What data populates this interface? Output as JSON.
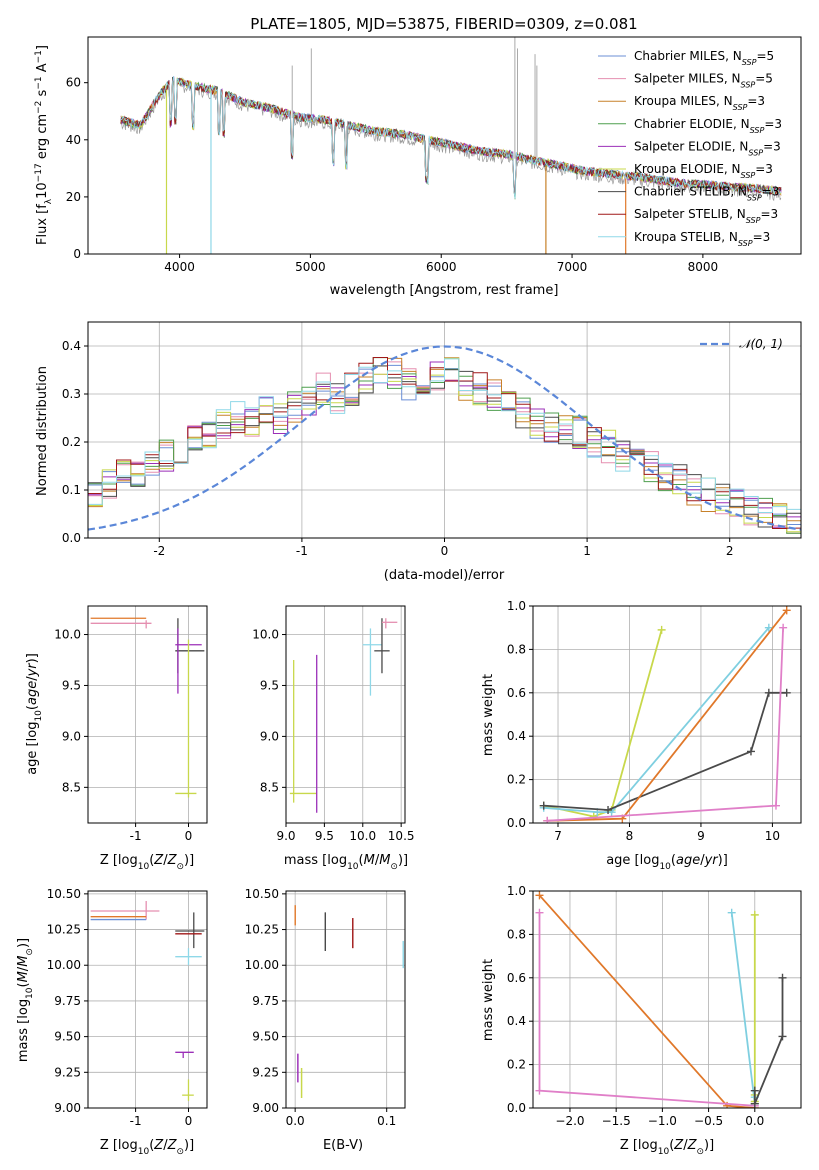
{
  "colors": {
    "chabrier_miles": "#6b8fd6",
    "salpeter_miles": "#e58fb0",
    "kroupa_miles": "#c7812a",
    "chabrier_elodie": "#4f9f4f",
    "salpeter_elodie": "#9b2fb8",
    "kroupa_elodie": "#c8d84b",
    "chabrier_stelib": "#4a4a4a",
    "salpeter_stelib": "#a01818",
    "kroupa_stelib": "#8fd8e8",
    "normal_curve": "#5b87d8",
    "grid": "#b0b0b0",
    "orange_line": "#e0782a",
    "pink_line": "#e07fc8",
    "cyan_line": "#7fcfe0",
    "yellow_line": "#c8d84b",
    "dark_line": "#4a4a4a"
  },
  "chart_data": [
    {
      "type": "line",
      "title": "PLATE=1805, MJD=53875, FIBERID=0309, z=0.081",
      "xlabel": "wavelength [Angstrom, rest frame]",
      "ylabel": "Flux [f_λ 10^-17 erg cm^-2 s^-1 A^-1]",
      "xlim": [
        3300,
        8750
      ],
      "ylim": [
        0,
        76
      ],
      "xticks": [
        4000,
        5000,
        6000,
        7000,
        8000
      ],
      "yticks": [
        0,
        20,
        40,
        60
      ],
      "legend_position": "top-right",
      "legend": [
        {
          "text": "Chabrier MILES, N",
          "sub": "SSP",
          "suffix": "=5",
          "color_key": "chabrier_miles"
        },
        {
          "text": "Salpeter MILES, N",
          "sub": "SSP",
          "suffix": "=5",
          "color_key": "salpeter_miles"
        },
        {
          "text": "Kroupa MILES, N",
          "sub": "SSP",
          "suffix": "=3",
          "color_key": "kroupa_miles"
        },
        {
          "text": "Chabrier ELODIE, N",
          "sub": "SSP",
          "suffix": "=3",
          "color_key": "chabrier_elodie"
        },
        {
          "text": "Salpeter ELODIE, N",
          "sub": "SSP",
          "suffix": "=3",
          "color_key": "salpeter_elodie"
        },
        {
          "text": "Kroupa ELODIE, N",
          "sub": "SSP",
          "suffix": "=3",
          "color_key": "kroupa_elodie"
        },
        {
          "text": "Chabrier STELIB, N",
          "sub": "SSP",
          "suffix": "=3",
          "color_key": "chabrier_stelib"
        },
        {
          "text": "Salpeter STELIB, N",
          "sub": "SSP",
          "suffix": "=3",
          "color_key": "salpeter_stelib"
        },
        {
          "text": "Kroupa STELIB, N",
          "sub": "SSP",
          "suffix": "=3",
          "color_key": "kroupa_stelib"
        }
      ],
      "spectrum_continuum": [
        [
          3550,
          46
        ],
        [
          3700,
          44
        ],
        [
          3850,
          55
        ],
        [
          3950,
          60
        ],
        [
          4100,
          58
        ],
        [
          4300,
          56
        ],
        [
          4500,
          52
        ],
        [
          4700,
          50
        ],
        [
          4900,
          47
        ],
        [
          5100,
          46
        ],
        [
          5300,
          44
        ],
        [
          5500,
          42
        ],
        [
          5700,
          41
        ],
        [
          5900,
          39
        ],
        [
          6100,
          37
        ],
        [
          6300,
          35
        ],
        [
          6500,
          34
        ],
        [
          6700,
          32
        ],
        [
          6900,
          30
        ],
        [
          7100,
          28
        ],
        [
          7300,
          27
        ],
        [
          7500,
          26
        ],
        [
          7800,
          24
        ],
        [
          8100,
          23
        ],
        [
          8400,
          22
        ],
        [
          8600,
          21
        ]
      ],
      "emission_spikes": [
        [
          4861,
          66
        ],
        [
          5007,
          72
        ],
        [
          6563,
          76
        ],
        [
          6583,
          72
        ],
        [
          6717,
          70
        ],
        [
          6731,
          66
        ]
      ],
      "model_cutoffs": [
        {
          "color_key": "kroupa_elodie",
          "x": 3900
        },
        {
          "color_key": "kroupa_stelib",
          "x": 4240
        },
        {
          "color_key": "kroupa_miles",
          "x": 6800
        },
        {
          "color_key": "orange_line",
          "x": 7410
        }
      ]
    },
    {
      "type": "line",
      "xlabel": "(data-model)/error",
      "ylabel": "Normed distribution",
      "xlim": [
        -2.5,
        2.5
      ],
      "ylim": [
        0,
        0.45
      ],
      "xticks": [
        -2,
        -1,
        0,
        1,
        2
      ],
      "yticks": [
        0.0,
        0.1,
        0.2,
        0.3,
        0.4
      ],
      "legend_position": "top-right",
      "legend": [
        {
          "text": "𝒩(0, 1)",
          "color_key": "normal_curve"
        }
      ],
      "series_names": [],
      "histogram_bins": 50,
      "histogram_start": -2.5,
      "histogram_width": 0.1,
      "histogram_base": [
        0.1,
        0.11,
        0.13,
        0.14,
        0.15,
        0.17,
        0.18,
        0.2,
        0.22,
        0.24,
        0.25,
        0.24,
        0.26,
        0.25,
        0.27,
        0.28,
        0.31,
        0.29,
        0.31,
        0.33,
        0.35,
        0.34,
        0.32,
        0.33,
        0.34,
        0.35,
        0.32,
        0.31,
        0.3,
        0.28,
        0.26,
        0.24,
        0.23,
        0.22,
        0.22,
        0.2,
        0.19,
        0.17,
        0.16,
        0.15,
        0.13,
        0.12,
        0.1,
        0.09,
        0.08,
        0.07,
        0.06,
        0.05,
        0.04,
        0.03
      ]
    },
    {
      "type": "scatter",
      "xlabel": "Z [log10(Z/Z⊙)]",
      "ylabel": "age [log10(age/yr)]",
      "xlim": [
        -1.9,
        0.35
      ],
      "ylim": [
        8.15,
        10.28
      ],
      "xticks": [
        -1,
        0
      ],
      "yticks": [
        8.5,
        9.0,
        9.5,
        10.0
      ],
      "errorbars": [
        {
          "x": -0.8,
          "y": 10.16,
          "xmin": -1.85,
          "xmax": -0.8,
          "ymin": 10.16,
          "ymax": 10.16,
          "color_key": "orange_line"
        },
        {
          "x": -0.8,
          "y": 10.11,
          "xmin": -1.85,
          "xmax": -0.7,
          "ymin": 10.06,
          "ymax": 10.14,
          "color_key": "salpeter_miles"
        },
        {
          "x": -0.2,
          "y": 9.84,
          "xmin": -0.25,
          "xmax": 0.3,
          "ymin": 9.62,
          "ymax": 10.16,
          "color_key": "chabrier_stelib"
        },
        {
          "x": -0.2,
          "y": 9.9,
          "xmin": -0.25,
          "xmax": 0.25,
          "ymin": 9.42,
          "ymax": 10.06,
          "color_key": "salpeter_elodie"
        },
        {
          "x": 0.0,
          "y": 8.44,
          "xmin": -0.25,
          "xmax": 0.15,
          "ymin": 8.4,
          "ymax": 9.95,
          "color_key": "kroupa_elodie"
        }
      ]
    },
    {
      "type": "scatter",
      "xlabel": "mass [log10(M/M⊙)]",
      "ylim": [
        8.15,
        10.28
      ],
      "xlim": [
        9.0,
        10.55
      ],
      "xticks": [
        9.0,
        9.5,
        10.0,
        10.5
      ],
      "yticks": [
        8.5,
        9.0,
        9.5,
        10.0
      ],
      "errorbars": [
        {
          "x": 9.1,
          "y": 9.0,
          "xmin": 9.1,
          "xmax": 9.1,
          "ymin": 8.35,
          "ymax": 9.75,
          "color_key": "kroupa_elodie"
        },
        {
          "x": 9.1,
          "y": 8.44,
          "xmin": 9.05,
          "xmax": 9.4,
          "ymin": 8.44,
          "ymax": 8.44,
          "color_key": "kroupa_elodie"
        },
        {
          "x": 9.4,
          "y": 9.0,
          "xmin": 9.4,
          "xmax": 9.4,
          "ymin": 8.25,
          "ymax": 9.8,
          "color_key": "salpeter_elodie"
        },
        {
          "x": 10.1,
          "y": 9.9,
          "xmin": 10.0,
          "xmax": 10.25,
          "ymin": 9.4,
          "ymax": 10.06,
          "color_key": "kroupa_stelib"
        },
        {
          "x": 10.25,
          "y": 9.84,
          "xmin": 10.15,
          "xmax": 10.35,
          "ymin": 9.62,
          "ymax": 10.16,
          "color_key": "chabrier_stelib"
        },
        {
          "x": 10.3,
          "y": 10.12,
          "xmin": 10.25,
          "xmax": 10.45,
          "ymin": 10.06,
          "ymax": 10.16,
          "color_key": "salpeter_miles"
        }
      ]
    },
    {
      "type": "line",
      "xlabel": "age [log10(age/yr)]",
      "ylabel": "mass weight",
      "xlim": [
        6.65,
        10.4
      ],
      "ylim": [
        0,
        1.0
      ],
      "xticks": [
        7,
        8,
        9,
        10
      ],
      "yticks": [
        0.0,
        0.2,
        0.4,
        0.6,
        0.8,
        1.0
      ],
      "series": [
        {
          "color_key": "yellow_line",
          "x": [
            6.8,
            7.5,
            7.75,
            8.45
          ],
          "y": [
            0.08,
            0.03,
            0.06,
            0.89
          ]
        },
        {
          "color_key": "cyan_line",
          "x": [
            6.8,
            7.55,
            7.75,
            9.95
          ],
          "y": [
            0.07,
            0.05,
            0.05,
            0.9
          ]
        },
        {
          "color_key": "dark_line",
          "x": [
            6.8,
            7.7,
            9.7,
            9.95,
            10.2
          ],
          "y": [
            0.08,
            0.06,
            0.33,
            0.6,
            0.6
          ]
        },
        {
          "color_key": "orange_line",
          "x": [
            6.85,
            7.9,
            10.2
          ],
          "y": [
            0.01,
            0.02,
            0.98
          ]
        },
        {
          "color_key": "pink_line",
          "x": [
            6.85,
            10.05,
            10.15
          ],
          "y": [
            0.01,
            0.08,
            0.9
          ]
        }
      ]
    },
    {
      "type": "scatter",
      "xlabel": "Z [log10(Z/Z⊙)]",
      "ylabel": "mass [log10(M/M⊙)]",
      "xlim": [
        -1.9,
        0.35
      ],
      "ylim": [
        9.0,
        10.52
      ],
      "xticks": [
        -1,
        0
      ],
      "yticks": [
        9.0,
        9.25,
        9.5,
        9.75,
        10.0,
        10.25,
        10.5
      ],
      "errorbars": [
        {
          "x": -0.8,
          "y": 10.38,
          "xmin": -1.85,
          "xmax": -0.55,
          "ymin": 10.32,
          "ymax": 10.45,
          "color_key": "salpeter_miles"
        },
        {
          "x": -0.8,
          "y": 10.34,
          "xmin": -1.85,
          "xmax": -0.8,
          "ymin": 10.34,
          "ymax": 10.34,
          "color_key": "orange_line"
        },
        {
          "x": -0.8,
          "y": 10.32,
          "xmin": -1.85,
          "xmax": -0.8,
          "ymin": 10.32,
          "ymax": 10.32,
          "color_key": "chabrier_miles"
        },
        {
          "x": 0.1,
          "y": 10.24,
          "xmin": -0.25,
          "xmax": 0.3,
          "ymin": 10.12,
          "ymax": 10.37,
          "color_key": "chabrier_stelib"
        },
        {
          "x": 0.1,
          "y": 10.22,
          "xmin": -0.25,
          "xmax": 0.25,
          "ymin": 10.22,
          "ymax": 10.22,
          "color_key": "salpeter_stelib"
        },
        {
          "x": 0.0,
          "y": 10.06,
          "xmin": -0.25,
          "xmax": 0.25,
          "ymin": 10.0,
          "ymax": 10.12,
          "color_key": "kroupa_stelib"
        },
        {
          "x": -0.1,
          "y": 9.39,
          "xmin": -0.25,
          "xmax": 0.1,
          "ymin": 9.35,
          "ymax": 9.39,
          "color_key": "salpeter_elodie"
        },
        {
          "x": 0.0,
          "y": 9.09,
          "xmin": -0.12,
          "xmax": 0.1,
          "ymin": 9.05,
          "ymax": 9.2,
          "color_key": "kroupa_elodie"
        }
      ]
    },
    {
      "type": "scatter",
      "xlabel": "E(B-V)",
      "xlim": [
        -0.01,
        0.12
      ],
      "ylim": [
        9.0,
        10.52
      ],
      "xticks": [
        0.0,
        0.1
      ],
      "yticks": [
        9.0,
        9.25,
        9.5,
        9.75,
        10.0,
        10.25,
        10.5
      ],
      "errorbars": [
        {
          "x": 0.0,
          "y": 10.34,
          "ymin": 10.28,
          "ymax": 10.42,
          "color_key": "orange_line"
        },
        {
          "x": 0.033,
          "y": 10.22,
          "ymin": 10.1,
          "ymax": 10.37,
          "color_key": "chabrier_stelib"
        },
        {
          "x": 0.063,
          "y": 10.22,
          "ymin": 10.12,
          "ymax": 10.33,
          "color_key": "salpeter_stelib"
        },
        {
          "x": 0.118,
          "y": 10.05,
          "ymin": 9.98,
          "ymax": 10.17,
          "color_key": "kroupa_stelib"
        },
        {
          "x": 0.003,
          "y": 9.3,
          "ymin": 9.18,
          "ymax": 9.38,
          "color_key": "salpeter_elodie"
        },
        {
          "x": 0.007,
          "y": 9.15,
          "ymin": 9.07,
          "ymax": 9.28,
          "color_key": "kroupa_elodie"
        }
      ]
    },
    {
      "type": "line",
      "xlabel": "Z [log10(Z/Z⊙)]",
      "ylabel": "mass weight",
      "xlim": [
        -2.4,
        0.5
      ],
      "ylim": [
        0,
        1.0
      ],
      "xticks": [
        -2.0,
        -1.5,
        -1.0,
        -0.5,
        0.0
      ],
      "yticks": [
        0.0,
        0.2,
        0.4,
        0.6,
        0.8,
        1.0
      ],
      "series": [
        {
          "color_key": "orange_line",
          "x": [
            -2.33,
            -0.3,
            0.0
          ],
          "y": [
            0.98,
            0.01,
            0.0
          ]
        },
        {
          "color_key": "pink_line",
          "x": [
            -2.33,
            -2.33,
            0.0,
            0.0
          ],
          "y": [
            0.9,
            0.08,
            0.01,
            0.02
          ]
        },
        {
          "color_key": "cyan_line",
          "x": [
            -0.25,
            0.0,
            0.0
          ],
          "y": [
            0.9,
            0.02,
            0.05
          ]
        },
        {
          "color_key": "yellow_line",
          "x": [
            0.0,
            0.0,
            0.0
          ],
          "y": [
            0.89,
            0.06,
            0.03
          ]
        },
        {
          "color_key": "dark_line",
          "x": [
            0.0,
            0.0,
            0.3,
            0.3
          ],
          "y": [
            0.08,
            0.02,
            0.33,
            0.6
          ]
        }
      ]
    }
  ],
  "labels": {
    "title": "PLATE=1805, MJD=53875, FIBERID=0309, z=0.081",
    "p1_xlabel": "wavelength [Angstrom, rest frame]",
    "p2_xlabel": "(data-model)/error",
    "p2_ylabel": "Normed distribution",
    "p2_legend": "𝒩(0, 1)",
    "mass_weight": "mass weight",
    "ebv": "E(B-V)"
  }
}
